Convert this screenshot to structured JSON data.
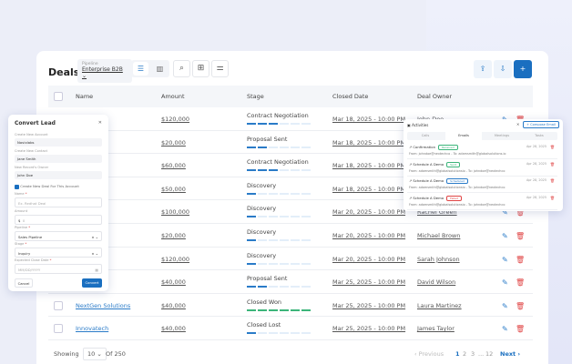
{
  "header": {
    "title": "Deals",
    "pipeline_label": "Pipeline",
    "pipeline_value": "Enterprise B2B"
  },
  "columns": [
    "Name",
    "Amount",
    "Stage",
    "Closed Date",
    "Deal Owner"
  ],
  "rows": [
    {
      "name": "",
      "amount": "$120,000",
      "stage": "Contract Negotiation",
      "progress": 3,
      "color": "#2a7bc8",
      "date": "Mar 18, 2025 - 10:00 PM",
      "owner": "John Doe"
    },
    {
      "name": "ns",
      "amount": "$20,000",
      "stage": "Proposal Sent",
      "progress": 2,
      "color": "#2a7bc8",
      "date": "Mar 18, 2025 - 10:00 PM",
      "owner": ""
    },
    {
      "name": "",
      "amount": "$60,000",
      "stage": "Contract Negotiation",
      "progress": 3,
      "color": "#2a7bc8",
      "date": "Mar 18, 2025 - 10:00 PM",
      "owner": ""
    },
    {
      "name": "al Press",
      "amount": "$50,000",
      "stage": "Discovery",
      "progress": 1,
      "color": "#2a7bc8",
      "date": "Mar 18, 2025 - 10:00 PM",
      "owner": ""
    },
    {
      "name": "n",
      "amount": "$100,000",
      "stage": "Discovery",
      "progress": 1,
      "color": "#2a7bc8",
      "date": "Mar 20, 2025 - 10:00 PM",
      "owner": "Rachel Green"
    },
    {
      "name": "e",
      "amount": "$20,000",
      "stage": "Discovery",
      "progress": 1,
      "color": "#2a7bc8",
      "date": "Mar 20, 2025 - 10:00 PM",
      "owner": "Michael Brown"
    },
    {
      "name": "nics",
      "amount": "$120,000",
      "stage": "Discovery",
      "progress": 1,
      "color": "#2a7bc8",
      "date": "Mar 20, 2025 - 10:00 PM",
      "owner": "Sarah Johnson"
    },
    {
      "name": "",
      "amount": "$40,000",
      "stage": "Proposal Sent",
      "progress": 2,
      "color": "#2a7bc8",
      "date": "Mar 25, 2025 - 10:00 PM",
      "owner": "David Wilson"
    },
    {
      "name": "NextGen Solutions",
      "amount": "$40,000",
      "stage": "Closed Won",
      "progress": 6,
      "color": "#3bb57a",
      "date": "Mar 25, 2025 - 10:00 PM",
      "owner": "Laura Martinez"
    },
    {
      "name": "Innovatech",
      "amount": "$40,000",
      "stage": "Closed Lost",
      "progress": 1,
      "color": "#2a7bc8",
      "date": "Mar 25, 2025 - 10:00 PM",
      "owner": "James Taylor"
    }
  ],
  "footer": {
    "showing": "Showing",
    "per_page": "10",
    "of": "Of 250",
    "previous": "Previous",
    "pages": [
      "1",
      "2",
      "3",
      "...",
      "12"
    ],
    "next": "Next"
  },
  "modal": {
    "title": "Convert Lead",
    "account_label": "Create New Account",
    "account_value": "Novixlabs",
    "contact_label": "Create New Contact",
    "contact_value": "Jane Smith",
    "owner_label": "New Record's Owner",
    "owner_value": "John Doe",
    "checkbox_label": "Create New Deal For This Account",
    "name_label": "Name",
    "name_placeholder": "Ex. Redhat Deal",
    "amount_label": "Amount",
    "amount_prefix": "$",
    "amount_value": "0",
    "pipeline_label": "Pipeline",
    "pipeline_value": "Sales Pipeline",
    "stage_label": "Stage",
    "stage_value": "Inquiry",
    "close_label": "Expected Close Date",
    "close_placeholder": "MM/DD/YYYY",
    "cancel": "Cancel",
    "convert": "Convert"
  },
  "activities": {
    "title": "Activities",
    "compose": "+ Compose Email",
    "tabs": [
      "Calls",
      "Emails",
      "Meetings",
      "Tasks"
    ],
    "emails": [
      {
        "subject": "Confirmation",
        "badge": "Received",
        "badge_color": "#3bb57a",
        "from": "From: johndoe@nextechco - To: adamsmith@globalsolutions.io",
        "date": "Apr 28, 2025"
      },
      {
        "subject": "Schedule A Demo",
        "badge": "Sent",
        "badge_color": "#3bb57a",
        "from": "From: adamsmith@globalsolutionsio - To: johndoe@nextechco",
        "date": "Apr 28, 2025"
      },
      {
        "subject": "Schedule A Demo",
        "badge": "Scheduled",
        "badge_color": "#2a7bc8",
        "from": "From: adamsmith@globalsolutionsio - To: johndoe@nextechco",
        "date": "Apr 28, 2025"
      },
      {
        "subject": "Schedule A Demo",
        "badge": "Failed",
        "badge_color": "#e04545",
        "from": "From: adamsmith@globalsolutionsio - To: johndoe@nextechco",
        "date": "Apr 28, 2025"
      }
    ]
  }
}
